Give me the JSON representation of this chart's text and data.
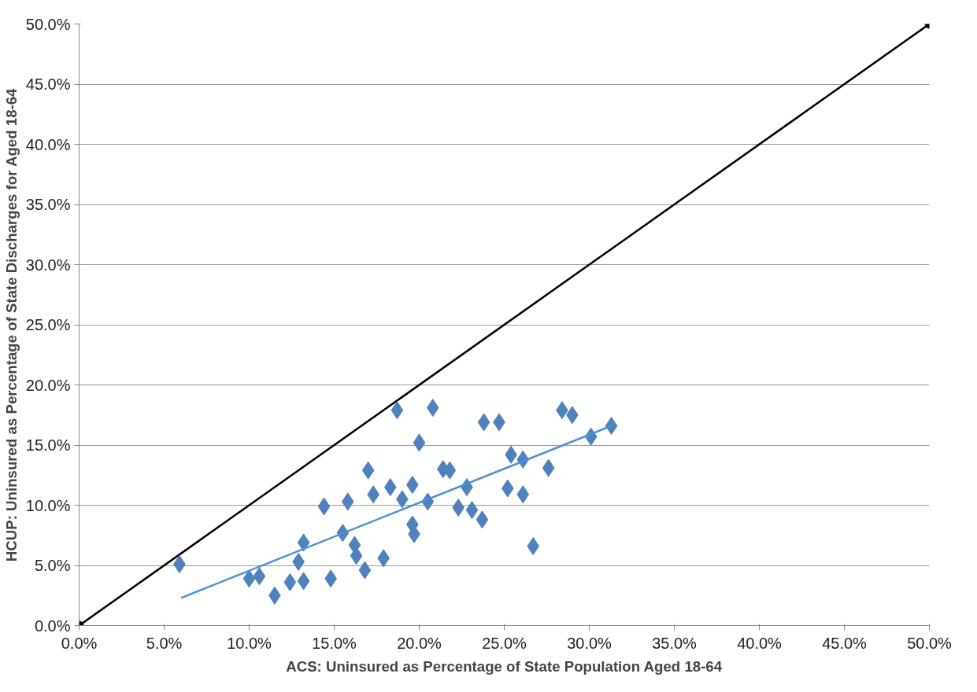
{
  "chart_data": {
    "type": "scatter",
    "xlabel": "ACS: Uninsured as Percentage of State Population Aged 18-64",
    "ylabel": "HCUP: Uninsured as Percentage of State Discharges for Aged 18-64",
    "xlim": [
      0,
      50
    ],
    "ylim": [
      0,
      50
    ],
    "xticks": [
      {
        "value": 0,
        "label": "0.0%"
      },
      {
        "value": 5,
        "label": "5.0%"
      },
      {
        "value": 10,
        "label": "10.0%"
      },
      {
        "value": 15,
        "label": "15.0%"
      },
      {
        "value": 20,
        "label": "20.0%"
      },
      {
        "value": 25,
        "label": "25.0%"
      },
      {
        "value": 30,
        "label": "30.0%"
      },
      {
        "value": 35,
        "label": "35.0%"
      },
      {
        "value": 40,
        "label": "40.0%"
      },
      {
        "value": 45,
        "label": "45.0%"
      },
      {
        "value": 50,
        "label": "50.0%"
      }
    ],
    "yticks": [
      {
        "value": 0,
        "label": "0.0%"
      },
      {
        "value": 5,
        "label": "5.0%"
      },
      {
        "value": 10,
        "label": "10.0%"
      },
      {
        "value": 15,
        "label": "15.0%"
      },
      {
        "value": 20,
        "label": "20.0%"
      },
      {
        "value": 25,
        "label": "25.0%"
      },
      {
        "value": 30,
        "label": "30.0%"
      },
      {
        "value": 35,
        "label": "35.0%"
      },
      {
        "value": 40,
        "label": "40.0%"
      },
      {
        "value": 45,
        "label": "45.0%"
      },
      {
        "value": 50,
        "label": "50.0%"
      }
    ],
    "grid": "y",
    "series": [
      {
        "type": "line",
        "color": "#000000",
        "marker": "circle",
        "x": [
          0,
          50
        ],
        "values": [
          0,
          50
        ]
      },
      {
        "color": "#4f81bd",
        "marker": "diamond",
        "x": [
          5.9,
          10.0,
          10.6,
          11.5,
          12.4,
          12.9,
          13.2,
          13.2,
          14.4,
          14.8,
          15.5,
          15.8,
          16.2,
          16.3,
          16.8,
          17.0,
          17.3,
          17.9,
          18.3,
          18.7,
          19.0,
          19.6,
          19.6,
          19.7,
          20.0,
          20.5,
          20.8,
          21.4,
          21.8,
          22.3,
          22.8,
          23.1,
          23.7,
          23.8,
          24.7,
          25.2,
          25.4,
          26.1,
          26.1,
          26.7,
          27.6,
          28.4,
          29.0,
          30.1,
          31.3
        ],
        "values": [
          5.1,
          3.9,
          4.1,
          2.5,
          3.6,
          5.3,
          6.9,
          3.7,
          9.9,
          3.9,
          7.7,
          10.3,
          6.7,
          5.8,
          4.6,
          12.9,
          10.9,
          5.6,
          11.5,
          17.9,
          10.5,
          11.7,
          8.4,
          7.6,
          15.2,
          10.3,
          18.1,
          13.0,
          12.9,
          9.8,
          11.5,
          9.6,
          8.8,
          16.9,
          16.9,
          11.4,
          14.2,
          13.8,
          10.9,
          6.6,
          13.1,
          17.9,
          17.5,
          15.7,
          16.6
        ]
      },
      {
        "type": "line",
        "color": "#4a8fd8",
        "marker": "none",
        "x": [
          6.0,
          31.3
        ],
        "values": [
          2.3,
          16.6
        ]
      }
    ]
  }
}
